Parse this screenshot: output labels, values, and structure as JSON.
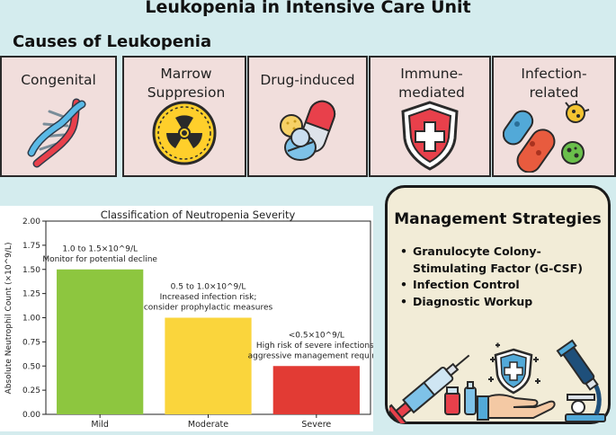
{
  "title": "Leukopenia in Intensive Care Unit",
  "causes": {
    "heading": "Causes of Leukopenia",
    "items": [
      {
        "label": "Congenital",
        "icon": "dna-icon"
      },
      {
        "label": "Marrow Suppresion",
        "icon": "radiation-icon"
      },
      {
        "label": "Drug-induced",
        "icon": "pills-icon"
      },
      {
        "label": "Immune-mediated",
        "icon": "shield-cross-icon"
      },
      {
        "label": "Infection-related",
        "icon": "germs-icon"
      }
    ]
  },
  "chart_data": {
    "type": "bar",
    "title": "Classification of Neutropenia Severity",
    "xlabel": "",
    "ylabel": "Absolute Neutrophil Count (×10^9/L)",
    "ylim": [
      0,
      2.0
    ],
    "yticks": [
      "0.00",
      "0.25",
      "0.50",
      "0.75",
      "1.00",
      "1.25",
      "1.50",
      "1.75",
      "2.00"
    ],
    "categories": [
      "Mild",
      "Moderate",
      "Severe"
    ],
    "values": [
      1.5,
      1.0,
      0.5
    ],
    "colors": [
      "#8dc63f",
      "#fad53c",
      "#e23b34"
    ],
    "annotations": [
      [
        "1.0 to 1.5×10^9/L",
        "Monitor for potential decline"
      ],
      [
        "0.5 to 1.0×10^9/L",
        "Increased infection risk;",
        "consider prophylactic measures"
      ],
      [
        "<0.5×10^9/L",
        "High risk of severe infections;",
        "aggressive management required"
      ]
    ],
    "grid": false
  },
  "management": {
    "title": "Management Strategies",
    "items": [
      "Granulocyte Colony-Stimulating Factor (G-CSF)",
      "Infection Control",
      "Diagnostic Workup"
    ],
    "icons": [
      "syringe-icon",
      "hand-shield-icon",
      "microscope-icon"
    ]
  }
}
